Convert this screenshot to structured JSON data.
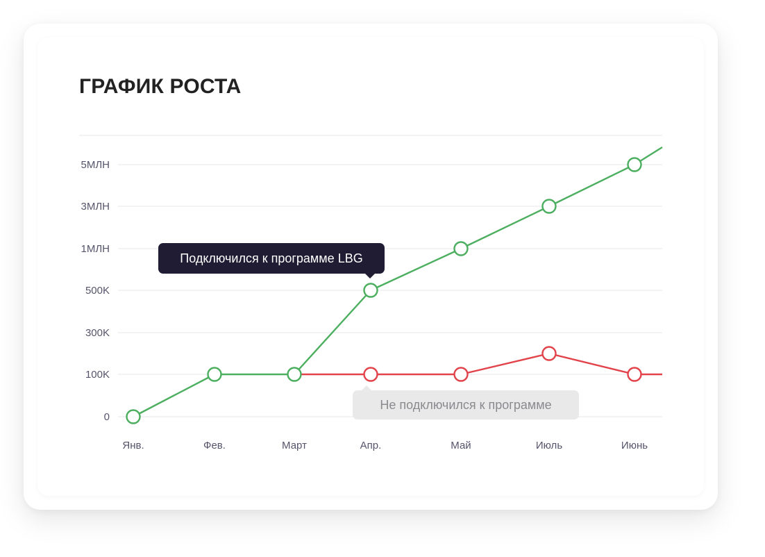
{
  "title": "ГРАФИК РОСТА",
  "tooltips": {
    "connected": "Подключился к программе LBG",
    "not_connected": "Не подключился к программе"
  },
  "colors": {
    "connected": "#4caf5f",
    "not_connected": "#e2434b",
    "grid": "#ececef",
    "tooltip_dark_bg": "#1f1c33",
    "tooltip_light_bg": "#e9e9ea"
  },
  "chart_data": {
    "type": "line",
    "title": "ГРАФИК РОСТА",
    "categories": [
      "Янв.",
      "Фев.",
      "Март",
      "Апр.",
      "Май",
      "Июль",
      "Июнь"
    ],
    "y_ticks": [
      "0",
      "100K",
      "300K",
      "500K",
      "1МЛН",
      "3МЛН",
      "5МЛН"
    ],
    "y_scale": "categorical-ordinal",
    "grid": true,
    "series": [
      {
        "values": [
          0,
          100000,
          100000,
          500000,
          1000000,
          3000000,
          5000000
        ],
        "color": "#4caf5f",
        "continues_past_last": true
      },
      {
        "values": [
          null,
          null,
          100000,
          100000,
          100000,
          200000,
          100000
        ],
        "color": "#e2434b",
        "continues_past_last": true
      }
    ],
    "annotations": [
      {
        "text": "Подключился к программе LBG",
        "series": 0,
        "category": "Апр."
      },
      {
        "text": "Не подключился к программе",
        "series": 1,
        "category": "Апр."
      }
    ]
  }
}
